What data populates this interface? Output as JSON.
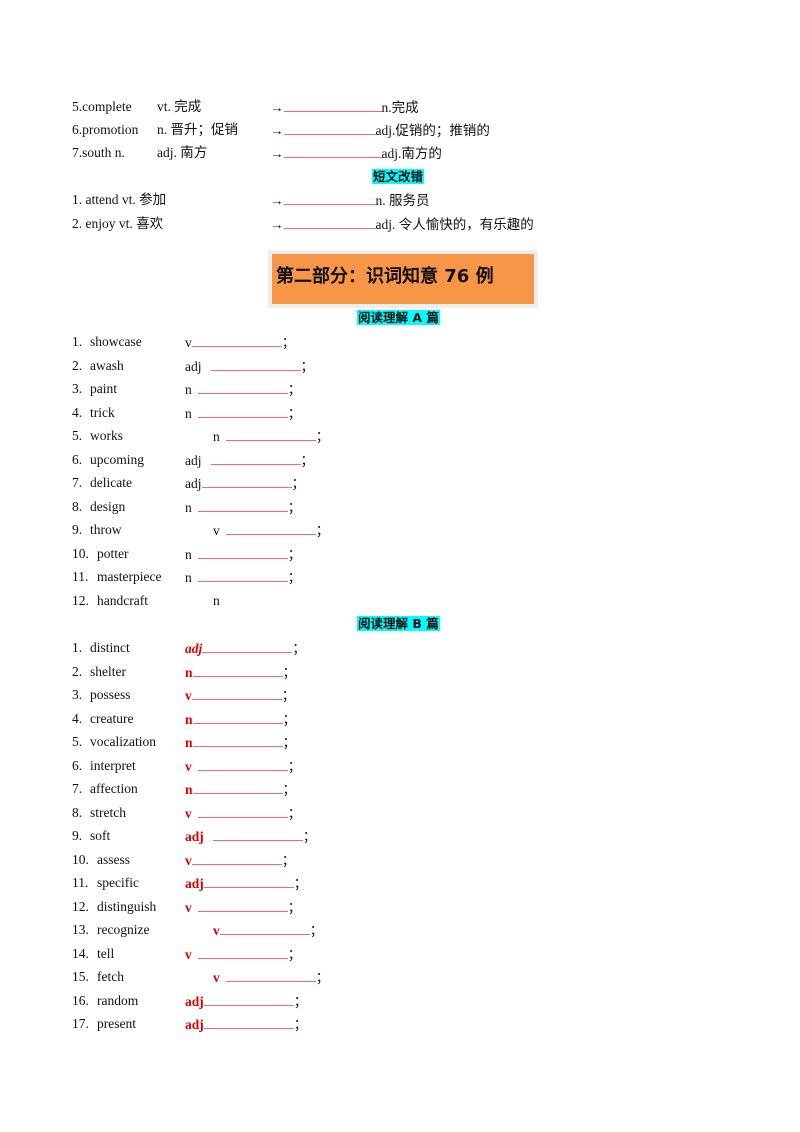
{
  "part1": {
    "rows": [
      {
        "word": "5.complete",
        "meaning": "vt. 完成",
        "arrow": "→",
        "target": "n.完成"
      },
      {
        "word": "6.promotion",
        "meaning": "n. 晋升；促销",
        "arrow": "→",
        "target": "adj.促销的；推销的"
      },
      {
        "word": "7.south  n.",
        "meaning": "adj. 南方",
        "arrow": "→",
        "target": "adj.南方的"
      }
    ],
    "section_heading": "短文改错",
    "rows2": [
      {
        "word": "1.  attend  vt.  参加",
        "arrow": "→",
        "target": "n. 服务员"
      },
      {
        "word": "2.  enjoy  vt.  喜欢",
        "arrow": "→",
        "target": "adj.  令人愉快的，有乐趣的"
      }
    ]
  },
  "part2": {
    "title": "第二部分：识词知意 76 例",
    "sectionA": {
      "heading": "阅读理解 A 篇",
      "items": [
        {
          "num": "1.",
          "word": "showcase",
          "pos": "v"
        },
        {
          "num": "2.",
          "word": "awash",
          "pos": "adj"
        },
        {
          "num": "3.",
          "word": "paint",
          "pos": "n"
        },
        {
          "num": "4.",
          "word": "trick",
          "pos": "n"
        },
        {
          "num": "5.",
          "word": "works",
          "pos": "n"
        },
        {
          "num": "6.",
          "word": "upcoming",
          "pos": "adj"
        },
        {
          "num": "7.",
          "word": "delicate",
          "pos": "adj"
        },
        {
          "num": "8.",
          "word": "design",
          "pos": "n"
        },
        {
          "num": "9.",
          "word": "throw",
          "pos": "v"
        },
        {
          "num": "10.",
          "word": "potter",
          "pos": "n"
        },
        {
          "num": "11.",
          "word": "masterpiece",
          "pos": "n"
        },
        {
          "num": "12.",
          "word": "handcraft",
          "pos": "n"
        }
      ]
    },
    "sectionB": {
      "heading": "阅读理解 B 篇",
      "pos_color": "#e00000",
      "items": [
        {
          "num": "1.",
          "word": "distinct",
          "pos": "adj"
        },
        {
          "num": "2.",
          "word": "shelter",
          "pos": "n"
        },
        {
          "num": "3.",
          "word": "possess",
          "pos": "v"
        },
        {
          "num": "4.",
          "word": "creature",
          "pos": "n"
        },
        {
          "num": "5.",
          "word": "vocalization",
          "pos": "n"
        },
        {
          "num": "6.",
          "word": "interpret",
          "pos": "v"
        },
        {
          "num": "7.",
          "word": "affection",
          "pos": "n"
        },
        {
          "num": "8.",
          "word": "stretch",
          "pos": "v"
        },
        {
          "num": "9.",
          "word": "soft",
          "pos": "adj"
        },
        {
          "num": "10.",
          "word": "assess",
          "pos": "v"
        },
        {
          "num": "11.",
          "word": "specific",
          "pos": "adj"
        },
        {
          "num": "12.",
          "word": "distinguish",
          "pos": "v"
        },
        {
          "num": "13.",
          "word": "recognize",
          "pos": "v"
        },
        {
          "num": "14.",
          "word": "tell",
          "pos": "v"
        },
        {
          "num": "15.",
          "word": "fetch",
          "pos": "v"
        },
        {
          "num": "16.",
          "word": "random",
          "pos": "adj"
        },
        {
          "num": "17.",
          "word": "present",
          "pos": "adj"
        }
      ]
    },
    "separator": "；"
  }
}
